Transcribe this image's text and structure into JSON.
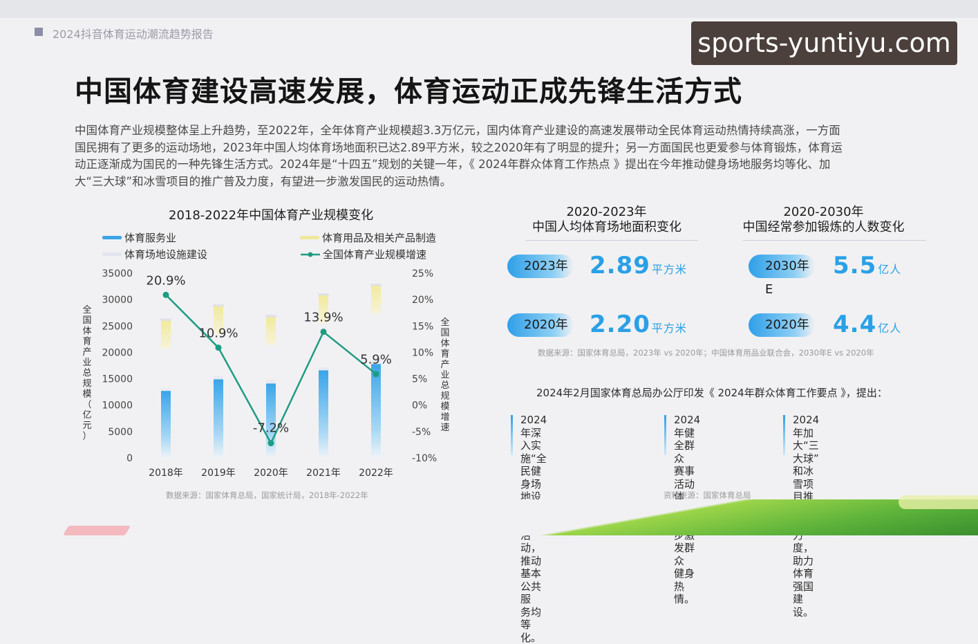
{
  "report": {
    "name": "2024抖音体育运动潮流趋势报告"
  },
  "watermark": "sports-yuntiyu.com",
  "main_title": "中国体育建设高速发展，体育运动正成先锋生活方式",
  "intro": [
    "中国体育产业规模整体呈上升趋势，至2022年，全年体育产业规模超3.3万亿元，国内体育产业建设的高速发展带动全民体育运动热情持续高涨，一方面",
    "国民拥有了更多的运动场地，2023年中国人均体育场地面积已达2.89平方米，较之2020年有了明显的提升；另一方面国民也更爱参与体育锻炼，体育运",
    "动正逐渐成为国民的一种先锋生活方式。2024年是“十四五”规划的关键一年，《 2024年群众体育工作热点 》提出在今年推动健身场地服务均等化、加",
    "大“三大球”和冰雪项目的推广普及力度，有望进一步激发国民的运动热情。"
  ],
  "chart_data": [
    {
      "type": "bar",
      "title": "2018-2022年中国体育产业规模变化",
      "categories": [
        "2018年",
        "2019年",
        "2020年",
        "2021年",
        "2022年"
      ],
      "ylabel": "全国体育产业总规模（亿元）",
      "y2label": "全国体育产业总规模增速",
      "ylim": [
        0,
        35000
      ],
      "y2lim": [
        -10,
        25
      ],
      "yticks": [
        "35000",
        "30000",
        "25000",
        "20000",
        "15000",
        "10000",
        "5000",
        "0"
      ],
      "y2ticks": [
        "25%",
        "20%",
        "15%",
        "10%",
        "5%",
        "0%",
        "-5%",
        "-10%"
      ],
      "series": [
        {
          "name": "体育服务业",
          "color": "#3aa5e8",
          "values": [
            12700,
            14900,
            14100,
            16600,
            17800
          ]
        },
        {
          "name": "体育用品及相关产品制造",
          "color": "#efe79a",
          "values": [
            13200,
            13600,
            12300,
            14000,
            14600
          ]
        },
        {
          "name": "体育场地设施建设",
          "color": "#e2e4ee",
          "values": [
            500,
            600,
            700,
            600,
            600
          ]
        },
        {
          "name": "全国体育产业规模增速",
          "type": "line",
          "color": "#1e9c83",
          "values": [
            20.9,
            10.9,
            -7.2,
            13.9,
            5.9
          ]
        }
      ],
      "point_labels": [
        "20.9%",
        "10.9%",
        "-7.2%",
        "13.9%",
        "5.9%"
      ],
      "source": "数据来源：国家体育总局，国家统计局，2018年-2022年"
    },
    {
      "type": "table",
      "title": "2020-2023年\n中国人均体育场地面积变化",
      "rows": [
        {
          "label": "2023年",
          "value": 2.89,
          "value_text": "2.89",
          "unit": "平方米"
        },
        {
          "label": "2020年",
          "value": 2.2,
          "value_text": "2.20",
          "unit": "平方米"
        }
      ]
    },
    {
      "type": "table",
      "title": "2020-2030年\n中国经常参加锻炼的人数变化",
      "rows": [
        {
          "label": "2030年E",
          "value": 5.5,
          "value_text": "5.5",
          "unit": "亿人"
        },
        {
          "label": "2020年",
          "value": 4.4,
          "value_text": "4.4",
          "unit": "亿人"
        }
      ]
    }
  ],
  "stats": {
    "title1_line1": "2020-2023年",
    "title1_line2": "中国人均体育场地面积变化",
    "title2_line1": "2020-2030年",
    "title2_line2": "中国经常参加锻炼的人数变化",
    "source": "数据来源：国家体育总局，2023年 vs 2020年；中国体育用品业联合会，2030年E vs 2020年"
  },
  "notice": {
    "heading": "2024年2月国家体育总局办公厅印发《 2024年群众体育工作要点 》，提出：",
    "points": [
      [
        "2024年深入实施“全",
        "民健身场地设施”提升",
        "活动，推动基本公共服",
        "务均等化。"
      ],
      [
        "2024年健全群众",
        "赛事活动体系，",
        "进一步激发群众",
        "健身热情。"
      ],
      [
        "2024年加大“三大球”",
        "和冰雪项目推广普及",
        "力度，助力体育强国",
        "建设。"
      ]
    ],
    "source": "资料来源：国家体育总局"
  }
}
